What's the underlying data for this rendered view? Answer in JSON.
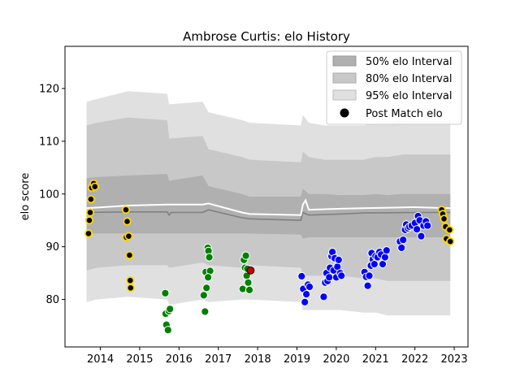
{
  "chart_data": {
    "type": "scatter",
    "title": "Ambrose Curtis: elo History",
    "xlabel": "",
    "ylabel": "elo score",
    "xlim": [
      2013.1,
      2023.35
    ],
    "ylim": [
      71.0,
      128.0
    ],
    "xticks": [
      2014,
      2015,
      2016,
      2017,
      2018,
      2019,
      2020,
      2021,
      2022,
      2023
    ],
    "xtick_labels": [
      "2014",
      "2015",
      "2016",
      "2017",
      "2018",
      "2019",
      "2020",
      "2021",
      "2022",
      "2023"
    ],
    "yticks": [
      80,
      90,
      100,
      110,
      120
    ],
    "ytick_labels": [
      "80",
      "90",
      "100",
      "110",
      "120"
    ],
    "grid": false,
    "legend_position": "top-right",
    "legend": [
      "50% elo Interval",
      "80% elo Interval",
      "95% elo Interval",
      "Post Match elo"
    ],
    "colors": {
      "band50": "#b0b0b0",
      "band80": "#c8c8c8",
      "band95": "#e0e0e0",
      "median_line": "#808080",
      "mean_line": "#ffffff",
      "gold": "#ffd700",
      "green": "#008000",
      "blue": "#0000ff",
      "red": "#cc0000"
    },
    "bands": {
      "x": [
        2013.65,
        2013.9,
        2014.7,
        2015.7,
        2015.75,
        2016.6,
        2016.75,
        2017.6,
        2017.8,
        2019.1,
        2019.15,
        2019.3,
        2019.7,
        2020.1,
        2020.7,
        2021.0,
        2021.3,
        2021.7,
        2022.0,
        2022.3,
        2022.6,
        2022.9
      ],
      "p50_low": [
        92.5,
        92.5,
        92.5,
        92.5,
        92.5,
        92.5,
        92.5,
        92.5,
        92.5,
        92.3,
        91.5,
        91.8,
        91.8,
        91.8,
        91.8,
        91.8,
        91.8,
        91.8,
        91.8,
        91.8,
        91.8,
        91.8
      ],
      "p50_high": [
        103.0,
        103.2,
        103.5,
        103.8,
        102.5,
        103.5,
        101.5,
        100.0,
        99.5,
        99.5,
        101.0,
        100.0,
        100.0,
        99.8,
        99.8,
        100.0,
        99.8,
        100.0,
        100.0,
        100.0,
        100.0,
        100.0
      ],
      "p80_low": [
        85.5,
        86.0,
        86.5,
        86.5,
        86.0,
        87.0,
        86.5,
        86.0,
        86.5,
        86.0,
        84.5,
        84.5,
        84.5,
        84.5,
        84.0,
        84.0,
        83.5,
        83.5,
        83.5,
        83.5,
        83.5,
        83.5
      ],
      "p80_high": [
        113.0,
        113.5,
        114.5,
        114.0,
        110.5,
        111.0,
        108.5,
        107.0,
        106.5,
        106.0,
        108.0,
        107.0,
        106.5,
        106.5,
        106.5,
        107.0,
        107.0,
        107.5,
        107.5,
        107.5,
        107.5,
        107.5
      ],
      "p95_low": [
        79.5,
        80.0,
        80.5,
        80.0,
        79.0,
        80.0,
        79.5,
        80.0,
        80.0,
        79.5,
        78.0,
        78.0,
        78.0,
        78.0,
        77.5,
        77.5,
        77.0,
        77.0,
        77.0,
        77.0,
        77.0,
        77.0
      ],
      "p95_high": [
        117.5,
        118.0,
        119.5,
        119.0,
        117.0,
        117.5,
        115.5,
        114.0,
        113.5,
        113.0,
        115.0,
        113.5,
        113.0,
        113.0,
        113.0,
        113.5,
        113.5,
        114.0,
        114.0,
        114.0,
        114.0,
        114.0
      ]
    },
    "median_line": {
      "x": [
        2013.65,
        2014.7,
        2015.7,
        2015.75,
        2015.8,
        2016.6,
        2016.75,
        2017.6,
        2017.8,
        2019.1,
        2019.15,
        2019.3,
        2020.1,
        2020.7,
        2022.0,
        2022.9
      ],
      "y": [
        96.5,
        96.6,
        96.6,
        96.0,
        96.5,
        96.5,
        97.0,
        95.5,
        95.3,
        95.0,
        96.5,
        96.0,
        96.2,
        96.4,
        96.5,
        96.5
      ]
    },
    "mean_line": {
      "x": [
        2013.65,
        2014.7,
        2015.7,
        2016.6,
        2016.75,
        2017.6,
        2017.8,
        2019.1,
        2019.15,
        2019.3,
        2020.1,
        2020.7,
        2022.0,
        2022.9
      ],
      "y": [
        97.3,
        97.8,
        98.0,
        98.0,
        98.2,
        96.5,
        96.2,
        96.0,
        98.0,
        97.0,
        97.2,
        97.3,
        97.5,
        97.3
      ],
      "spike": {
        "x": 2019.22,
        "y": 98.8
      }
    },
    "series": [
      {
        "color": "gold",
        "points": [
          [
            2013.7,
            92.5
          ],
          [
            2013.72,
            95.0
          ],
          [
            2013.74,
            96.5
          ],
          [
            2013.76,
            99.0
          ],
          [
            2013.78,
            101.2
          ],
          [
            2013.83,
            102.0
          ],
          [
            2013.86,
            101.4
          ],
          [
            2014.65,
            97.0
          ],
          [
            2014.68,
            94.8
          ],
          [
            2014.66,
            91.8
          ],
          [
            2014.72,
            92.0
          ],
          [
            2014.74,
            88.4
          ],
          [
            2014.76,
            83.6
          ],
          [
            2014.77,
            82.2
          ],
          [
            2022.68,
            97.0
          ],
          [
            2022.71,
            96.2
          ],
          [
            2022.74,
            95.3
          ],
          [
            2022.78,
            93.8
          ],
          [
            2022.8,
            91.5
          ],
          [
            2022.88,
            93.2
          ],
          [
            2022.9,
            91.0
          ]
        ]
      },
      {
        "color": "green",
        "points": [
          [
            2015.65,
            81.2
          ],
          [
            2015.66,
            77.3
          ],
          [
            2015.68,
            75.2
          ],
          [
            2015.72,
            74.2
          ],
          [
            2015.74,
            77.8
          ],
          [
            2015.77,
            78.2
          ],
          [
            2016.63,
            80.8
          ],
          [
            2016.66,
            77.7
          ],
          [
            2016.68,
            85.2
          ],
          [
            2016.7,
            82.2
          ],
          [
            2016.73,
            89.8
          ],
          [
            2016.75,
            89.2
          ],
          [
            2016.77,
            88.0
          ],
          [
            2016.79,
            85.4
          ],
          [
            2016.74,
            84.2
          ],
          [
            2017.62,
            82.0
          ],
          [
            2017.65,
            87.5
          ],
          [
            2017.68,
            86.0
          ],
          [
            2017.7,
            88.3
          ],
          [
            2017.72,
            84.5
          ],
          [
            2017.74,
            85.8
          ],
          [
            2017.76,
            83.2
          ],
          [
            2017.79,
            81.8
          ]
        ]
      },
      {
        "color": "blue",
        "points": [
          [
            2019.12,
            84.4
          ],
          [
            2019.16,
            82.0
          ],
          [
            2019.2,
            79.5
          ],
          [
            2019.24,
            81.0
          ],
          [
            2019.28,
            82.8
          ],
          [
            2019.32,
            82.4
          ],
          [
            2019.68,
            80.5
          ],
          [
            2019.72,
            83.2
          ],
          [
            2019.75,
            85.0
          ],
          [
            2019.78,
            83.5
          ],
          [
            2019.82,
            84.2
          ],
          [
            2019.84,
            86.0
          ],
          [
            2019.88,
            88.2
          ],
          [
            2019.9,
            89.0
          ],
          [
            2019.93,
            85.5
          ],
          [
            2019.96,
            87.8
          ],
          [
            2020.0,
            84.2
          ],
          [
            2020.03,
            86.2
          ],
          [
            2020.06,
            87.5
          ],
          [
            2020.1,
            85.0
          ],
          [
            2020.13,
            84.5
          ],
          [
            2020.72,
            85.2
          ],
          [
            2020.76,
            84.3
          ],
          [
            2020.8,
            82.6
          ],
          [
            2020.84,
            84.5
          ],
          [
            2020.88,
            86.4
          ],
          [
            2020.9,
            88.8
          ],
          [
            2020.93,
            87.6
          ],
          [
            2020.97,
            86.7
          ],
          [
            2021.0,
            88.2
          ],
          [
            2021.05,
            88.0
          ],
          [
            2021.1,
            89.0
          ],
          [
            2021.14,
            88.5
          ],
          [
            2021.18,
            86.7
          ],
          [
            2021.24,
            88.0
          ],
          [
            2021.28,
            89.3
          ],
          [
            2021.62,
            91.0
          ],
          [
            2021.66,
            89.8
          ],
          [
            2021.7,
            91.3
          ],
          [
            2021.75,
            93.2
          ],
          [
            2021.78,
            94.2
          ],
          [
            2021.82,
            93.5
          ],
          [
            2021.86,
            93.8
          ],
          [
            2021.92,
            94.0
          ],
          [
            2022.0,
            94.5
          ],
          [
            2022.05,
            93.3
          ],
          [
            2022.08,
            95.8
          ],
          [
            2022.12,
            95.0
          ],
          [
            2022.16,
            92.0
          ],
          [
            2022.22,
            94.0
          ],
          [
            2022.28,
            94.8
          ],
          [
            2022.32,
            94.0
          ]
        ]
      },
      {
        "color": "red",
        "points": [
          [
            2017.82,
            85.5
          ]
        ]
      }
    ]
  }
}
